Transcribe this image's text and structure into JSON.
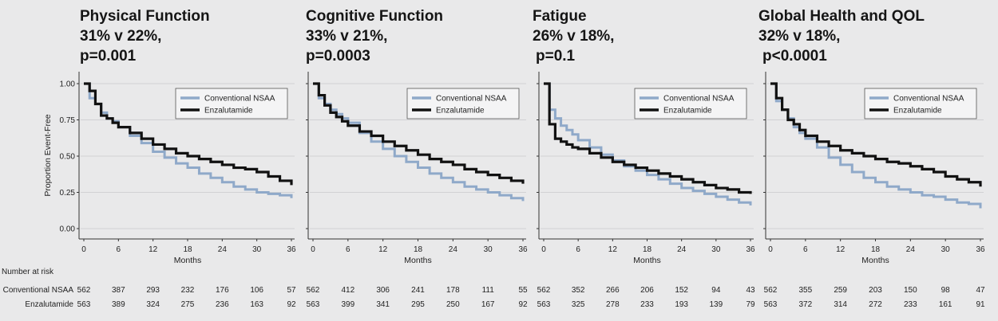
{
  "chart_data": [
    {
      "type": "line",
      "title": "Physical Function",
      "subtitle_lines": [
        "31% v 22%,",
        "p=0.001"
      ],
      "xlabel": "Months",
      "ylabel": "Proportion Event-Free",
      "xlim": [
        0,
        36
      ],
      "ylim": [
        0,
        1
      ],
      "xticks": [
        "0",
        "6",
        "12",
        "18",
        "24",
        "30",
        "36"
      ],
      "yticks": [
        "0.00",
        "0.25",
        "0.50",
        "0.75",
        "1.00"
      ],
      "grid": true,
      "legend_position": "top-right",
      "series": [
        {
          "name": "Conventional NSAA",
          "color": "#8fa9c9",
          "x": [
            0,
            1,
            2,
            3,
            4,
            5,
            6,
            8,
            10,
            12,
            14,
            16,
            18,
            20,
            22,
            24,
            26,
            28,
            30,
            32,
            34,
            36
          ],
          "y": [
            1.0,
            0.9,
            0.86,
            0.8,
            0.76,
            0.74,
            0.7,
            0.64,
            0.59,
            0.53,
            0.49,
            0.45,
            0.42,
            0.38,
            0.35,
            0.32,
            0.29,
            0.27,
            0.25,
            0.24,
            0.23,
            0.21
          ]
        },
        {
          "name": "Enzalutamide",
          "color": "#111111",
          "x": [
            0,
            1,
            2,
            3,
            4,
            5,
            6,
            8,
            10,
            12,
            14,
            16,
            18,
            20,
            22,
            24,
            26,
            28,
            30,
            32,
            34,
            36
          ],
          "y": [
            1.0,
            0.95,
            0.86,
            0.78,
            0.76,
            0.73,
            0.7,
            0.66,
            0.62,
            0.58,
            0.55,
            0.52,
            0.5,
            0.48,
            0.46,
            0.44,
            0.42,
            0.41,
            0.39,
            0.36,
            0.33,
            0.3
          ]
        }
      ],
      "at_risk": {
        "header": "Number at risk",
        "rows": [
          {
            "label": "Conventional NSAA",
            "values": [
              "562",
              "387",
              "293",
              "232",
              "176",
              "106",
              "57"
            ]
          },
          {
            "label": "Enzalutamide",
            "values": [
              "563",
              "389",
              "324",
              "275",
              "236",
              "163",
              "92"
            ]
          }
        ]
      }
    },
    {
      "type": "line",
      "title": "Cognitive Function",
      "subtitle_lines": [
        "33% v 21%,",
        "p=0.0003"
      ],
      "xlabel": "Months",
      "xlim": [
        0,
        36
      ],
      "ylim": [
        0,
        1
      ],
      "xticks": [
        "0",
        "6",
        "12",
        "18",
        "24",
        "30",
        "36"
      ],
      "grid": true,
      "legend_position": "top-right",
      "series": [
        {
          "name": "Conventional NSAA",
          "color": "#8fa9c9",
          "x": [
            0,
            1,
            2,
            3,
            4,
            5,
            6,
            8,
            10,
            12,
            14,
            16,
            18,
            20,
            22,
            24,
            26,
            28,
            30,
            32,
            34,
            36
          ],
          "y": [
            1.0,
            0.9,
            0.86,
            0.82,
            0.79,
            0.76,
            0.73,
            0.66,
            0.6,
            0.55,
            0.5,
            0.46,
            0.42,
            0.38,
            0.35,
            0.32,
            0.29,
            0.27,
            0.25,
            0.23,
            0.21,
            0.19
          ]
        },
        {
          "name": "Enzalutamide",
          "color": "#111111",
          "x": [
            0,
            1,
            2,
            3,
            4,
            5,
            6,
            8,
            10,
            12,
            14,
            16,
            18,
            20,
            22,
            24,
            26,
            28,
            30,
            32,
            34,
            36
          ],
          "y": [
            1.0,
            0.92,
            0.85,
            0.8,
            0.77,
            0.74,
            0.71,
            0.67,
            0.64,
            0.6,
            0.57,
            0.54,
            0.51,
            0.48,
            0.46,
            0.44,
            0.41,
            0.39,
            0.37,
            0.35,
            0.33,
            0.31
          ]
        }
      ],
      "at_risk": {
        "rows": [
          {
            "label": "",
            "values": [
              "562",
              "412",
              "306",
              "241",
              "178",
              "111",
              "55"
            ]
          },
          {
            "label": "",
            "values": [
              "563",
              "399",
              "341",
              "295",
              "250",
              "167",
              "92"
            ]
          }
        ]
      }
    },
    {
      "type": "line",
      "title": "Fatigue",
      "subtitle_lines": [
        "26% v 18%,",
        "p=0.1"
      ],
      "xlabel": "Months",
      "xlim": [
        0,
        36
      ],
      "ylim": [
        0,
        1
      ],
      "xticks": [
        "0",
        "6",
        "12",
        "18",
        "24",
        "30",
        "36"
      ],
      "grid": true,
      "legend_position": "top-right",
      "series": [
        {
          "name": "Conventional NSAA",
          "color": "#8fa9c9",
          "x": [
            0,
            1,
            2,
            3,
            4,
            5,
            6,
            8,
            10,
            12,
            14,
            16,
            18,
            20,
            22,
            24,
            26,
            28,
            30,
            32,
            34,
            36
          ],
          "y": [
            1.0,
            0.82,
            0.76,
            0.71,
            0.68,
            0.65,
            0.61,
            0.56,
            0.51,
            0.47,
            0.43,
            0.4,
            0.37,
            0.34,
            0.31,
            0.28,
            0.26,
            0.24,
            0.22,
            0.2,
            0.18,
            0.16
          ]
        },
        {
          "name": "Enzalutamide",
          "color": "#111111",
          "x": [
            0,
            1,
            2,
            3,
            4,
            5,
            6,
            8,
            10,
            12,
            14,
            16,
            18,
            20,
            22,
            24,
            26,
            28,
            30,
            32,
            34,
            36
          ],
          "y": [
            1.0,
            0.72,
            0.62,
            0.6,
            0.58,
            0.56,
            0.55,
            0.52,
            0.49,
            0.46,
            0.44,
            0.42,
            0.4,
            0.38,
            0.36,
            0.34,
            0.32,
            0.3,
            0.28,
            0.27,
            0.25,
            0.24
          ]
        }
      ],
      "at_risk": {
        "rows": [
          {
            "label": "",
            "values": [
              "562",
              "352",
              "266",
              "206",
              "152",
              "94",
              "43"
            ]
          },
          {
            "label": "",
            "values": [
              "563",
              "325",
              "278",
              "233",
              "193",
              "139",
              "79"
            ]
          }
        ]
      }
    },
    {
      "type": "line",
      "title": "Global Health and QOL",
      "subtitle_lines": [
        "32% v 18%,",
        "p<0.0001"
      ],
      "xlabel": "Months",
      "xlim": [
        0,
        36
      ],
      "ylim": [
        0,
        1
      ],
      "xticks": [
        "0",
        "6",
        "12",
        "18",
        "24",
        "30",
        "36"
      ],
      "grid": true,
      "legend_position": "top-right",
      "series": [
        {
          "name": "Conventional NSAA",
          "color": "#8fa9c9",
          "x": [
            0,
            1,
            2,
            3,
            4,
            5,
            6,
            8,
            10,
            12,
            14,
            16,
            18,
            20,
            22,
            24,
            26,
            28,
            30,
            32,
            34,
            36
          ],
          "y": [
            1.0,
            0.88,
            0.82,
            0.76,
            0.7,
            0.66,
            0.62,
            0.56,
            0.49,
            0.44,
            0.39,
            0.35,
            0.32,
            0.29,
            0.27,
            0.25,
            0.23,
            0.22,
            0.2,
            0.18,
            0.17,
            0.14
          ]
        },
        {
          "name": "Enzalutamide",
          "color": "#111111",
          "x": [
            0,
            1,
            2,
            3,
            4,
            5,
            6,
            8,
            10,
            12,
            14,
            16,
            18,
            20,
            22,
            24,
            26,
            28,
            30,
            32,
            34,
            36
          ],
          "y": [
            1.0,
            0.9,
            0.82,
            0.75,
            0.72,
            0.68,
            0.64,
            0.6,
            0.57,
            0.54,
            0.52,
            0.5,
            0.48,
            0.46,
            0.45,
            0.43,
            0.41,
            0.39,
            0.36,
            0.34,
            0.32,
            0.29
          ]
        }
      ],
      "at_risk": {
        "rows": [
          {
            "label": "",
            "values": [
              "562",
              "355",
              "259",
              "203",
              "150",
              "98",
              "47"
            ]
          },
          {
            "label": "",
            "values": [
              "563",
              "372",
              "314",
              "272",
              "233",
              "161",
              "91"
            ]
          }
        ]
      }
    }
  ]
}
